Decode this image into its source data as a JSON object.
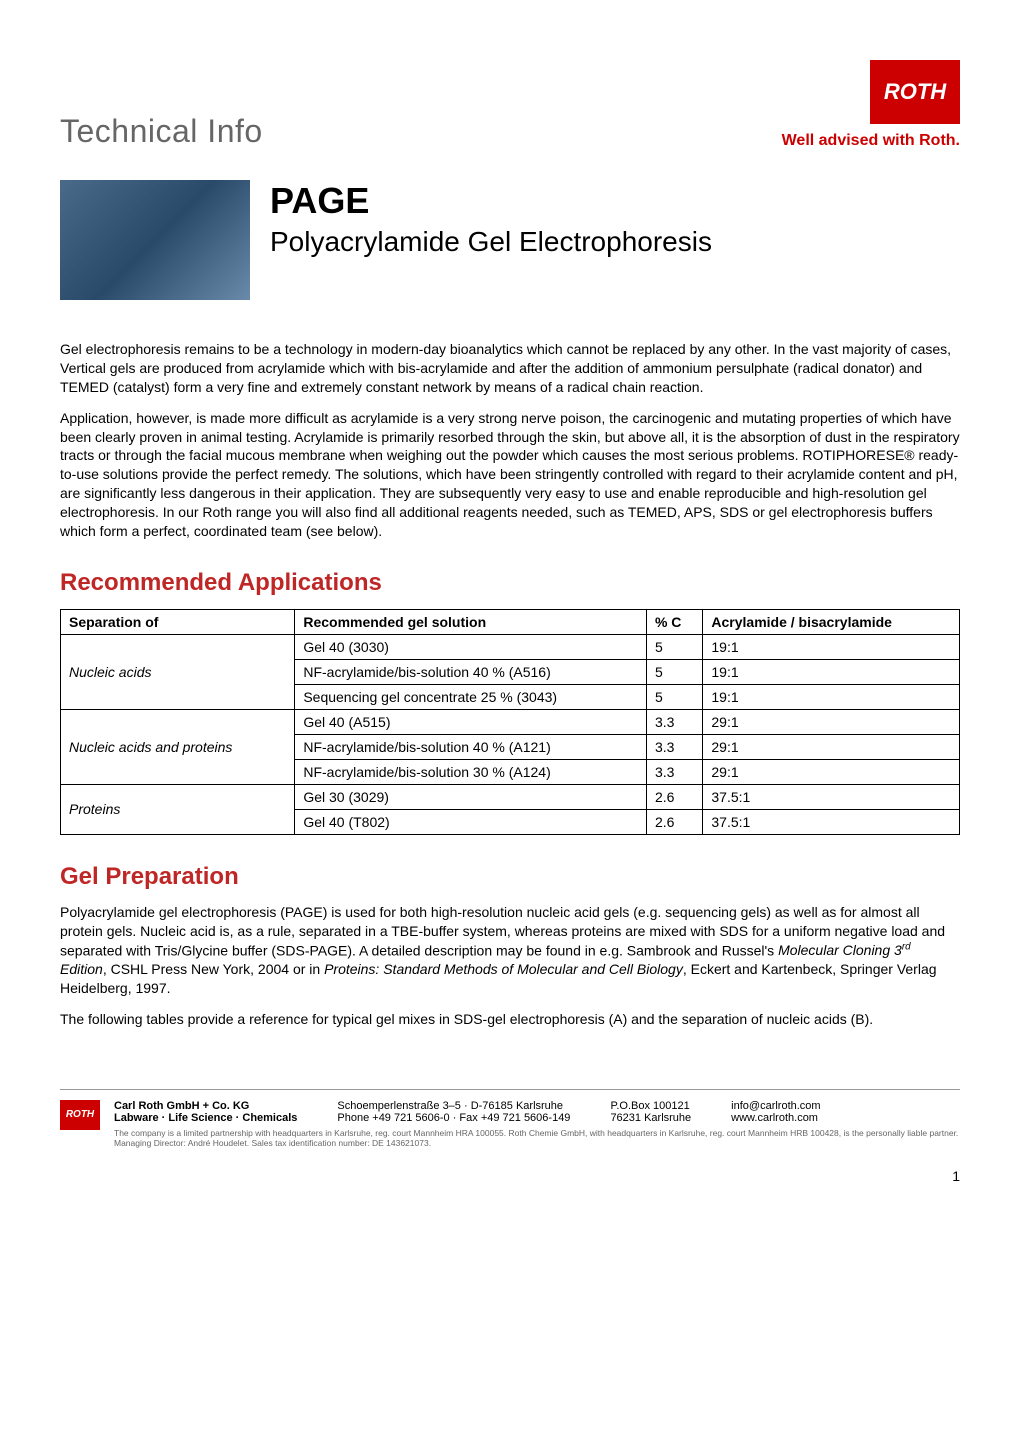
{
  "header": {
    "tech_info": "Technical Info",
    "logo_text": "ROTH",
    "tagline": "Well advised with Roth."
  },
  "title": {
    "abbrev": "PAGE",
    "full": "Polyacrylamide Gel Electrophoresis"
  },
  "intro": {
    "p1": "Gel electrophoresis remains to be a technology in modern-day bioanalytics which cannot be replaced by any other. In the vast majority of cases, Vertical gels are produced from acrylamide which with bis-acrylamide and after the addition of ammonium persulphate (radical donator) and TEMED (catalyst) form a very fine and extremely constant network by means of a radical chain reaction.",
    "p2": "Application, however, is made more difficult as acrylamide is a very strong nerve poison, the carcinogenic and mutating properties of which have been clearly proven in animal testing. Acrylamide is primarily resorbed through the skin, but above all, it is the absorption of dust in the respiratory tracts or through the facial mucous membrane when weighing out the powder which causes the most serious problems. ROTIPHORESE® ready-to-use solutions provide the perfect remedy. The solutions, which have been stringently controlled with regard to their acrylamide content and pH, are significantly less dangerous in their application. They are subsequently very easy to use and enable reproducible and high-resolution gel electrophoresis. In our Roth range you will also find all additional reagents needed, such as TEMED, APS, SDS or gel electrophoresis buffers which form a perfect, coordinated team (see below)."
  },
  "sections": {
    "recommended": "Recommended Applications",
    "gelprep": "Gel Preparation"
  },
  "table": {
    "headers": {
      "sep": "Separation of",
      "sol": "Recommended gel solution",
      "pc": "% C",
      "ratio": "Acrylamide / bisacrylamide"
    },
    "groups": [
      {
        "label": "Nucleic acids",
        "rows": [
          {
            "sol": "Gel 40 (3030)",
            "pc": "5",
            "ratio": "19:1"
          },
          {
            "sol": "NF-acrylamide/bis-solution 40 % (A516)",
            "pc": "5",
            "ratio": "19:1"
          },
          {
            "sol": "Sequencing gel concentrate 25 % (3043)",
            "pc": "5",
            "ratio": "19:1"
          }
        ]
      },
      {
        "label": "Nucleic acids and proteins",
        "rows": [
          {
            "sol": "Gel 40 (A515)",
            "pc": "3.3",
            "ratio": "29:1"
          },
          {
            "sol": "NF-acrylamide/bis-solution 40 % (A121)",
            "pc": "3.3",
            "ratio": "29:1"
          },
          {
            "sol": "NF-acrylamide/bis-solution 30 % (A124)",
            "pc": "3.3",
            "ratio": "29:1"
          }
        ]
      },
      {
        "label": "Proteins",
        "rows": [
          {
            "sol": "Gel 30 (3029)",
            "pc": "2.6",
            "ratio": "37.5:1"
          },
          {
            "sol": "Gel 40 (T802)",
            "pc": "2.6",
            "ratio": "37.5:1"
          }
        ]
      }
    ]
  },
  "gelprep": {
    "p1_pre": "Polyacrylamide gel electrophoresis (PAGE) is used for both high-resolution nucleic acid gels (e.g. sequencing gels) as well as for almost all protein gels. Nucleic acid is, as a rule, separated in a TBE-buffer system, whereas proteins are mixed with SDS for a uniform negative load and separated with Tris/Glycine buffer (SDS-PAGE). A detailed description may be found in e.g. Sambrook and Russel's ",
    "p1_em1": "Molecular Cloning 3",
    "p1_mid": ", CSHL Press New York, 2004 or in ",
    "p1_em2": "Proteins: Standard Methods of Molecular and Cell Biology",
    "p1_post": ", Eckert and Kartenbeck, Springer Verlag Heidelberg, 1997.",
    "p2": "The following tables provide a reference for typical gel mixes in SDS-gel electrophoresis (A) and the separation of nucleic acids (B)."
  },
  "footer": {
    "company": "Carl Roth GmbH + Co. KG",
    "dept": "Labware · Life Science · Chemicals",
    "address": "Schoemperlenstraße 3–5 · D-76185 Karlsruhe",
    "phone": "Phone +49 721 5606-0 · Fax +49 721 5606-149",
    "pobox": "P.O.Box 100121",
    "city": "76231 Karlsruhe",
    "email": "info@carlroth.com",
    "web": "www.carlroth.com",
    "legal": "The company is a limited partnership with headquarters in Karlsruhe, reg. court Mannheim HRA 100055. Roth Chemie GmbH, with headquarters in Karlsruhe, reg. court Mannheim HRB 100428, is the personally liable partner. Managing Director: André Houdelet. Sales tax identification number: DE 143621073."
  },
  "page_number": "1",
  "colors": {
    "brand_red": "#cc0000",
    "heading_red": "#bf2626",
    "text": "#000000",
    "grey": "#666666",
    "border": "#000000"
  }
}
